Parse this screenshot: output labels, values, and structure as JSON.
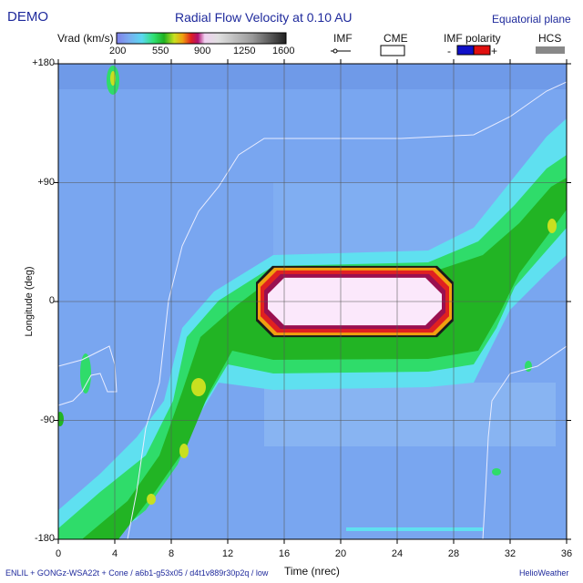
{
  "header": {
    "left_label": "DEMO",
    "title": "Radial Flow Velocity at 0.10 AU",
    "right_label": "Equatorial plane"
  },
  "colorbar": {
    "label": "Vrad (km/s)",
    "ticks": [
      "200",
      "550",
      "900",
      "1250",
      "1600"
    ],
    "tick_values": [
      200,
      550,
      900,
      1250,
      1600
    ],
    "range": [
      200,
      1600
    ]
  },
  "legend": {
    "imf_label": "IMF",
    "cme_label": "CME",
    "polarity_label": "IMF polarity",
    "polarity_minus": "-",
    "polarity_plus": "+",
    "polarity_minus_color": "#1010c8",
    "polarity_plus_color": "#e01010",
    "hcs_label": "HCS",
    "hcs_color": "#888888"
  },
  "footer": {
    "left": "ENLIL + GONGz-WSA22t + Cone / a6b1-g53x05 / d4t1v889r30p2q / low",
    "right": "HelioWeather"
  },
  "chart_data": {
    "type": "heatmap",
    "title": "Radial Flow Velocity at 0.10 AU",
    "xlabel": "Time (nrec)",
    "ylabel": "Longitude (deg)",
    "xlim": [
      0,
      36
    ],
    "ylim": [
      -180,
      180
    ],
    "x_ticks": [
      0,
      4,
      8,
      12,
      16,
      20,
      24,
      28,
      32,
      36
    ],
    "x_tick_labels": [
      "0",
      "4",
      "8",
      "12",
      "16",
      "20",
      "24",
      "28",
      "32",
      "36"
    ],
    "y_ticks": [
      -180,
      -90,
      0,
      90,
      180
    ],
    "y_tick_labels": [
      "-180",
      "-90",
      "0",
      "+90",
      "+180"
    ],
    "grid": true,
    "background_speed": 320,
    "cme": {
      "x_range": [
        14,
        28
      ],
      "y_range": [
        -27,
        27
      ],
      "core_speed": 1600,
      "rim_speed": 800
    },
    "fast_stream_band": {
      "description_points_x": [
        0,
        6,
        9,
        12,
        16,
        20,
        24,
        28,
        31,
        36
      ],
      "center_longitude": [
        -175,
        -140,
        -90,
        -40,
        -20,
        -20,
        -20,
        -20,
        10,
        70
      ],
      "speed": 480
    }
  }
}
